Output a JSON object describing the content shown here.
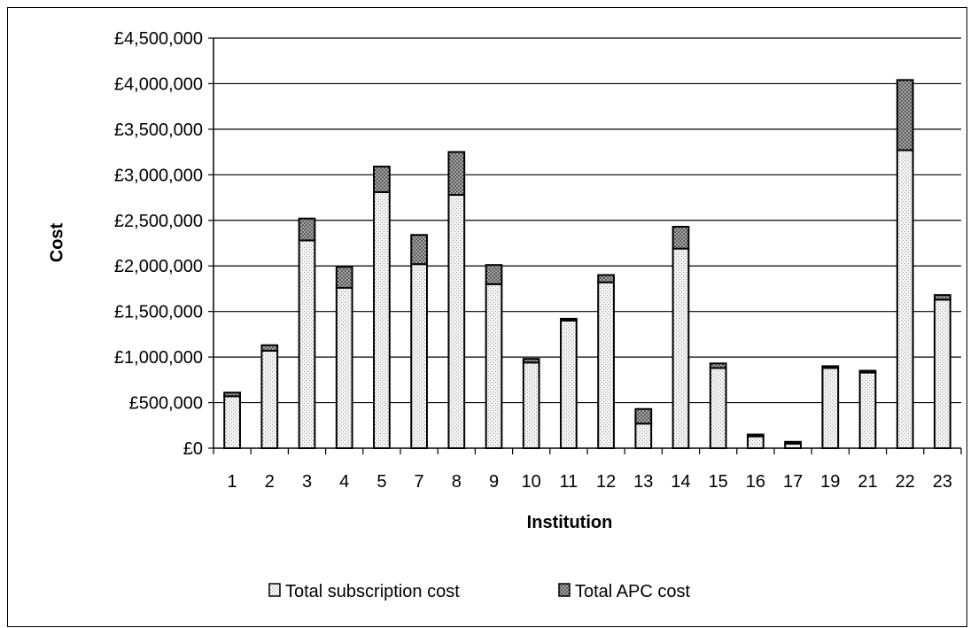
{
  "chart_data": {
    "type": "bar",
    "stacked": true,
    "xlabel": "Institution",
    "ylabel": "Cost",
    "ylim": [
      0,
      4500000
    ],
    "y_ticks": [
      0,
      500000,
      1000000,
      1500000,
      2000000,
      2500000,
      3000000,
      3500000,
      4000000,
      4500000
    ],
    "y_tick_labels": [
      "£0",
      "£500,000",
      "£1,000,000",
      "£1,500,000",
      "£2,000,000",
      "£2,500,000",
      "£3,000,000",
      "£3,500,000",
      "£4,000,000",
      "£4,500,000"
    ],
    "categories": [
      "1",
      "2",
      "3",
      "4",
      "5",
      "7",
      "8",
      "9",
      "10",
      "11",
      "12",
      "13",
      "14",
      "15",
      "16",
      "17",
      "19",
      "21",
      "22",
      "23"
    ],
    "series": [
      {
        "name": "Total subscription cost",
        "color": "#e2e2e2",
        "values": [
          570000,
          1070000,
          2280000,
          1760000,
          2810000,
          2020000,
          2780000,
          1800000,
          940000,
          1400000,
          1820000,
          270000,
          2190000,
          880000,
          130000,
          50000,
          880000,
          830000,
          3270000,
          1630000
        ]
      },
      {
        "name": "Total APC cost",
        "color": "#8c8c8c",
        "values": [
          40000,
          60000,
          240000,
          230000,
          280000,
          320000,
          470000,
          210000,
          40000,
          20000,
          80000,
          160000,
          240000,
          50000,
          20000,
          20000,
          20000,
          20000,
          770000,
          50000
        ]
      }
    ],
    "grid": true,
    "legend_position": "bottom"
  }
}
